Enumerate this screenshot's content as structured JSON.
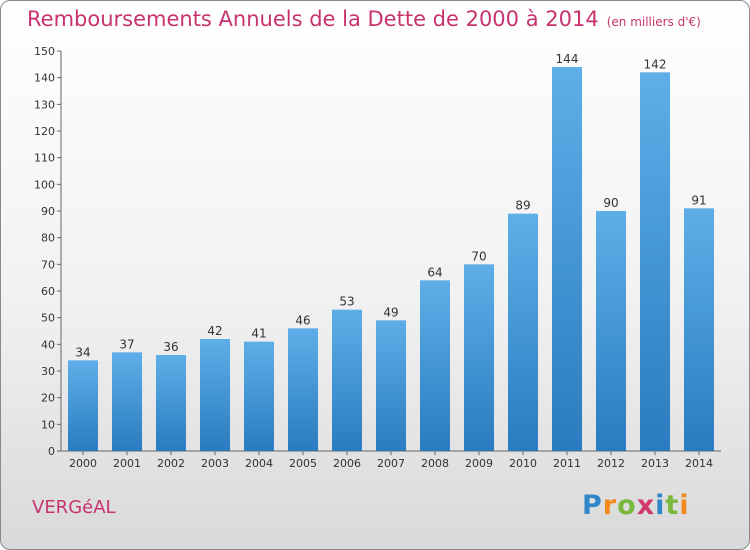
{
  "title": "Remboursements Annuels de la Dette de 2000 à 2014",
  "unit": "(en milliers d'€)",
  "commune": "VERGéAL",
  "logo": {
    "text": "Proxiti",
    "letters": [
      "P",
      "r",
      "o",
      "x",
      "i",
      "t",
      "i"
    ],
    "colors": [
      "#2f86c8",
      "#f08a1c",
      "#79b83a",
      "#d23a6e",
      "#2f86c8",
      "#79b83a",
      "#f08a1c"
    ]
  },
  "colors": {
    "title": "#c8336f",
    "bar_light": "#5eaee8",
    "bar_dark": "#2a7cc0"
  },
  "chart_data": {
    "type": "bar",
    "title": "Remboursements Annuels de la Dette de 2000 à 2014",
    "ylabel": "en milliers d'€",
    "xlabel": "",
    "categories": [
      "2000",
      "2001",
      "2002",
      "2003",
      "2004",
      "2005",
      "2006",
      "2007",
      "2008",
      "2009",
      "2010",
      "2011",
      "2012",
      "2013",
      "2014"
    ],
    "values": [
      34,
      37,
      36,
      42,
      41,
      46,
      53,
      49,
      64,
      70,
      89,
      144,
      90,
      142,
      91
    ],
    "ylim": [
      0,
      150
    ],
    "yticks": [
      0,
      10,
      20,
      30,
      40,
      50,
      60,
      70,
      80,
      90,
      100,
      110,
      120,
      130,
      140,
      150
    ],
    "grid": false
  }
}
